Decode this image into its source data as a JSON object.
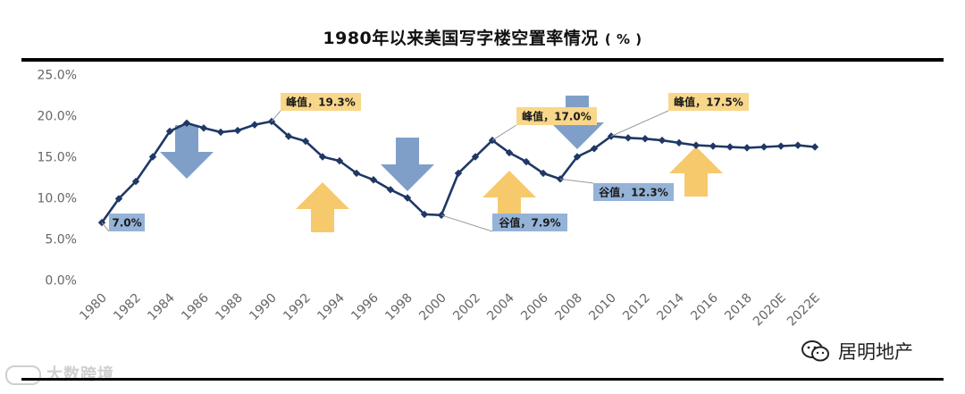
{
  "title": "1980年以来美国写字楼空置率情况",
  "title_unit": "( % )",
  "watermark_left": "大数跨境",
  "watermark_right": "居明地产",
  "colors": {
    "line": "#1f3864",
    "down_arrow": "#7f9fc9",
    "up_arrow": "#f6c96c",
    "label_blue": "#95b3d7",
    "label_orange": "#f9d78a",
    "tick": "#666666"
  },
  "chart_data": {
    "type": "line",
    "title": "1980年以来美国写字楼空置率情况（%）",
    "xlabel": "",
    "ylabel": "",
    "ylim": [
      0,
      25
    ],
    "y_ticks": [
      "0.0%",
      "5.0%",
      "10.0%",
      "15.0%",
      "20.0%",
      "25.0%"
    ],
    "x_tick_labels": [
      "1980",
      "1982",
      "1984",
      "1986",
      "1988",
      "1990",
      "1992",
      "1994",
      "1996",
      "1998",
      "2000",
      "2002",
      "2004",
      "2006",
      "2008",
      "2010",
      "2012",
      "2014",
      "2016",
      "2018",
      "2020E",
      "2022E"
    ],
    "series": [
      {
        "name": "空置率",
        "x": [
          "1980",
          "1981",
          "1982",
          "1983",
          "1984",
          "1985",
          "1986",
          "1987",
          "1988",
          "1989",
          "1990",
          "1991",
          "1992",
          "1993",
          "1994",
          "1995",
          "1996",
          "1997",
          "1998",
          "1999",
          "2000",
          "2001",
          "2002",
          "2003",
          "2004",
          "2005",
          "2006",
          "2007",
          "2008",
          "2009",
          "2010",
          "2011",
          "2012",
          "2013",
          "2014",
          "2015",
          "2016",
          "2017",
          "2018",
          "2019",
          "2020E",
          "2021E",
          "2022E"
        ],
        "values": [
          7.0,
          9.9,
          12.0,
          15.0,
          18.1,
          19.1,
          18.5,
          18.0,
          18.2,
          18.9,
          19.3,
          17.5,
          16.9,
          15.0,
          14.5,
          13.0,
          12.2,
          11.0,
          10.0,
          8.0,
          7.9,
          13.0,
          15.0,
          17.0,
          15.5,
          14.4,
          13.0,
          12.3,
          15.0,
          16.0,
          17.5,
          17.3,
          17.2,
          17.0,
          16.7,
          16.4,
          16.3,
          16.2,
          16.1,
          16.2,
          16.3,
          16.4,
          16.2
        ]
      }
    ],
    "annotations": [
      {
        "text": "7.0%",
        "year": "1980",
        "value": 7.0,
        "style": "blue"
      },
      {
        "text": "峰值，19.3%",
        "year": "1990",
        "value": 19.3,
        "style": "orange"
      },
      {
        "text": "谷值，7.9%",
        "year": "2000",
        "value": 7.9,
        "style": "blue"
      },
      {
        "text": "峰值，17.0%",
        "year": "2003",
        "value": 17.0,
        "style": "orange"
      },
      {
        "text": "谷值，12.3%",
        "year": "2007",
        "value": 12.3,
        "style": "blue"
      },
      {
        "text": "峰值，17.5%",
        "year": "2010",
        "value": 17.5,
        "style": "orange"
      }
    ],
    "arrows": [
      {
        "direction": "down",
        "year": "1985"
      },
      {
        "direction": "up",
        "year": "1993"
      },
      {
        "direction": "down",
        "year": "1998"
      },
      {
        "direction": "up",
        "year": "2004"
      },
      {
        "direction": "down",
        "year": "2008"
      },
      {
        "direction": "up",
        "year": "2015"
      }
    ]
  }
}
